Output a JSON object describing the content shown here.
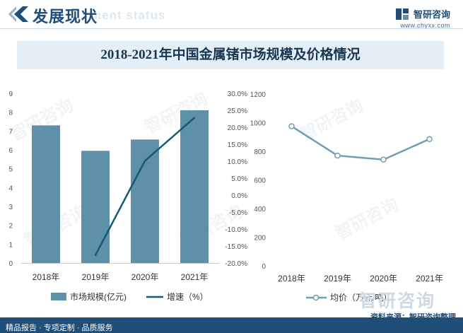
{
  "header": {
    "title": "发展现状",
    "ghost_text": "ment status",
    "brand_name": "智研咨询",
    "brand_url": "www.chyxx.com"
  },
  "chart_title": "2018-2021年中国金属锗市场规模及价格情况",
  "footer": {
    "left": "精品报告 · 专项定制 · 品质服务",
    "source": "资料来源：智研咨询整理",
    "ghost_brand": "智研咨询"
  },
  "watermark_text": "智研咨询",
  "colors": {
    "bar": "#5e91a8",
    "growth_line": "#145a78",
    "price_line": "#6f9db3",
    "header_blue": "#1f4e79"
  },
  "chart_data": [
    {
      "type": "bar",
      "title": "2018-2021年中国金属锗市场规模及价格情况",
      "categories": [
        "2018年",
        "2019年",
        "2020年",
        "2021年"
      ],
      "series": [
        {
          "name": "市场规模(亿元)",
          "type": "bar",
          "axis": "left",
          "values": [
            7.3,
            5.95,
            6.55,
            8.1
          ]
        },
        {
          "name": "增速（%）",
          "type": "line",
          "axis": "right",
          "values": [
            null,
            -17.7,
            10.1,
            22.8
          ]
        }
      ],
      "y_left": {
        "min": 0,
        "max": 9,
        "step": 1,
        "ticks": [
          "0",
          "1",
          "2",
          "3",
          "4",
          "5",
          "6",
          "7",
          "8",
          "9"
        ]
      },
      "y_right": {
        "min": -20,
        "max": 30,
        "step": 5,
        "ticks": [
          "-20.0%",
          "-15.0%",
          "-10.0%",
          "-5.0%",
          "0.0%",
          "5.0%",
          "10.0%",
          "15.0%",
          "20.0%",
          "25.0%",
          "30.0%"
        ]
      },
      "legend": [
        "市场规模(亿元)",
        "增速（%）"
      ],
      "legend_position": "bottom"
    },
    {
      "type": "line",
      "categories": [
        "2018年",
        "2019年",
        "2020年",
        "2021年"
      ],
      "series": [
        {
          "name": "均价（万元/吨）",
          "values": [
            975,
            770,
            742,
            885
          ]
        }
      ],
      "y": {
        "min": 0,
        "max": 1200,
        "step": 200,
        "ticks": [
          "0",
          "200",
          "400",
          "600",
          "800",
          "1000",
          "1200"
        ]
      },
      "legend": [
        "均价（万元/吨）"
      ],
      "legend_position": "bottom"
    }
  ]
}
